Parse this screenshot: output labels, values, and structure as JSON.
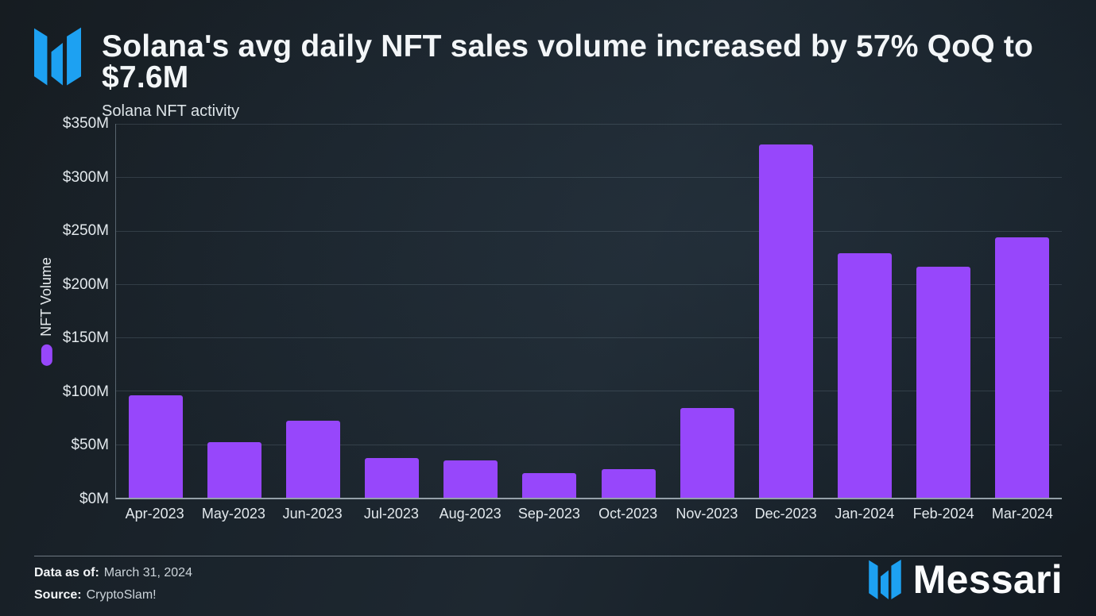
{
  "header": {
    "title": "Solana's avg daily NFT sales volume increased by 57% QoQ to $7.6M",
    "subtitle": "Solana NFT activity"
  },
  "chart_data": {
    "type": "bar",
    "title": "Solana's avg daily NFT sales volume increased by 57% QoQ to $7.6M",
    "categories": [
      "Apr-2023",
      "May-2023",
      "Jun-2023",
      "Jul-2023",
      "Aug-2023",
      "Sep-2023",
      "Oct-2023",
      "Nov-2023",
      "Dec-2023",
      "Jan-2024",
      "Feb-2024",
      "Mar-2024"
    ],
    "values": [
      96,
      52,
      72,
      37,
      35,
      23,
      27,
      84,
      331,
      229,
      216,
      244
    ],
    "values_unit": "$M",
    "xlabel": "",
    "ylabel": "NFT Volume",
    "ylim": [
      0,
      350
    ],
    "yticks": [
      0,
      50,
      100,
      150,
      200,
      250,
      300,
      350
    ],
    "ytick_labels": [
      "$0M",
      "$50M",
      "$100M",
      "$150M",
      "$200M",
      "$250M",
      "$300M",
      "$350M"
    ],
    "legend": [
      {
        "label": "NFT Volume",
        "color": "#9747fb"
      }
    ],
    "legend_position": "left-rotated",
    "grid": "horizontal",
    "bar_color": "#9747fb"
  },
  "footer": {
    "data_as_of_label": "Data as of:",
    "data_as_of_value": "March 31, 2024",
    "source_label": "Source:",
    "source_value": "CryptoSlam!",
    "brand": "Messari"
  },
  "colors": {
    "bar": "#9747fb",
    "brand_blue": "#1da1f2",
    "background_dark": "#1a232b",
    "text_light": "#f3f6f8"
  }
}
